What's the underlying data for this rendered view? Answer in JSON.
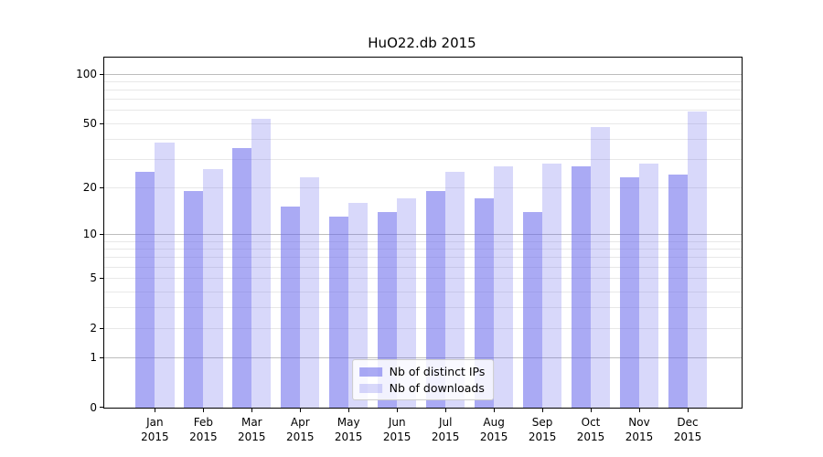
{
  "figure": {
    "background_color": "#ffffff"
  },
  "chart_data": {
    "type": "bar",
    "title": "HuO22.db 2015",
    "categories": [
      "Jan",
      "Feb",
      "Mar",
      "Apr",
      "May",
      "Jun",
      "Jul",
      "Aug",
      "Sep",
      "Oct",
      "Nov",
      "Dec"
    ],
    "category_year": "2015",
    "series": [
      {
        "name": "Nb of distinct IPs",
        "color": "rgba(100,100,235,0.55)",
        "color_hex": "#a9a9f4",
        "values": [
          25,
          19,
          35,
          15,
          13,
          14,
          19,
          17,
          14,
          27,
          23,
          24
        ]
      },
      {
        "name": "Nb of downloads",
        "color": "rgba(100,100,235,0.25)",
        "color_hex": "#dadaf9",
        "values": [
          38,
          26,
          53,
          23,
          16,
          17,
          25,
          27,
          28,
          47,
          28,
          59
        ]
      }
    ],
    "xlabel": "",
    "ylabel": "",
    "yscale": "log1p",
    "ylim": [
      0,
      125
    ],
    "y_tick_values": [
      100,
      50,
      20,
      10,
      5,
      2,
      1,
      0
    ],
    "y_tick_labels": [
      "100",
      "50",
      "20",
      "10",
      "5",
      "2",
      "1",
      "0"
    ],
    "grid": {
      "major_values": [
        1,
        10,
        100
      ],
      "minor_values": [
        2,
        3,
        4,
        5,
        6,
        7,
        8,
        9,
        20,
        30,
        40,
        50,
        60,
        70,
        80,
        90
      ],
      "major_color": "#bdbdbd",
      "minor_color": "#e8e8e8"
    },
    "legend": {
      "position": "lower center"
    }
  }
}
